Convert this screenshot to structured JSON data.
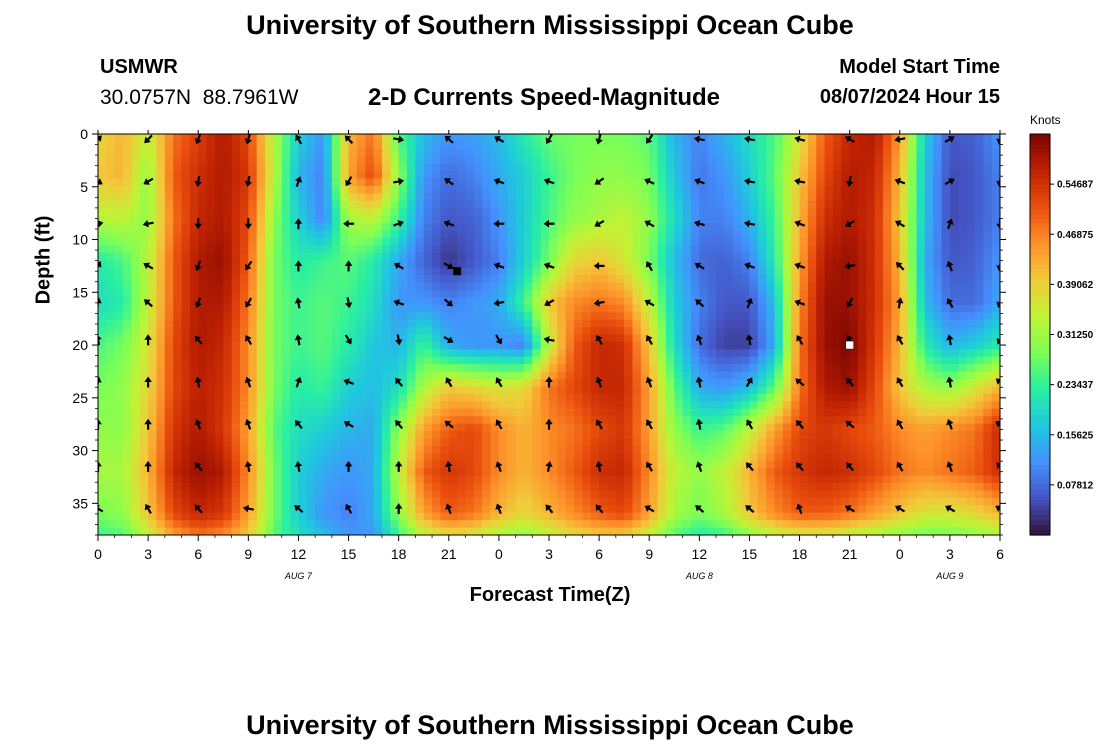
{
  "header": {
    "title": "University of Southern Mississippi Ocean Cube",
    "station": "USMWR",
    "coordinates": "30.0757N  88.7961W",
    "subtitle": "2-D Currents Speed-Magnitude",
    "model_start_label": "Model Start Time",
    "model_start_value": "08/07/2024 Hour 15"
  },
  "footer": {
    "title": "University of Southern Mississippi Ocean Cube"
  },
  "chart_data": {
    "type": "heatmap",
    "title": "2-D Currents Speed-Magnitude",
    "xlabel": "Forecast Time(Z)",
    "ylabel": "Depth (ft)",
    "x_ticks": [
      "0",
      "3",
      "6",
      "9",
      "12",
      "15",
      "18",
      "21",
      "0",
      "3",
      "6",
      "9",
      "12",
      "15",
      "18",
      "21",
      "0",
      "3",
      "6"
    ],
    "x_range_hours": [
      0,
      54
    ],
    "date_labels": [
      {
        "text": "AUG 7",
        "hour": 12
      },
      {
        "text": "AUG 8",
        "hour": 36
      },
      {
        "text": "AUG 9",
        "hour": 51
      }
    ],
    "y_ticks": [
      0,
      5,
      10,
      15,
      20,
      25,
      30,
      35
    ],
    "y_range": [
      0,
      38
    ],
    "colorbar": {
      "title": "Knots",
      "ticks": [
        "0.54687",
        "0.46875",
        "0.39062",
        "0.31250",
        "0.23437",
        "0.15625",
        "0.07812"
      ],
      "range": [
        0,
        0.625
      ],
      "colors": [
        "#30123b",
        "#4454c4",
        "#4490fe",
        "#1fc8de",
        "#29efa2",
        "#7dff56",
        "#c1f334",
        "#f1ca3a",
        "#fe922a",
        "#ea4e0d",
        "#be2102",
        "#7a0403"
      ]
    },
    "speed_grid": {
      "hours": [
        0,
        1.5,
        3,
        4.5,
        6,
        7.5,
        9,
        10.5,
        12,
        13.5,
        15,
        16.5,
        18,
        19.5,
        21,
        22.5,
        24,
        25.5,
        27,
        28.5,
        30,
        31.5,
        33,
        34.5,
        36,
        37.5,
        39,
        40.5,
        42,
        43.5,
        45,
        46.5,
        48,
        49.5,
        51,
        52.5,
        54
      ],
      "depths_ft": [
        0,
        4,
        8,
        12,
        16,
        20,
        24,
        28,
        32,
        36,
        38
      ],
      "values_knots": [
        [
          0.38,
          0.42,
          0.34,
          0.48,
          0.53,
          0.58,
          0.52,
          0.33,
          0.18,
          0.12,
          0.42,
          0.48,
          0.25,
          0.16,
          0.12,
          0.13,
          0.16,
          0.22,
          0.27,
          0.28,
          0.28,
          0.28,
          0.26,
          0.15,
          0.1,
          0.15,
          0.2,
          0.25,
          0.36,
          0.5,
          0.56,
          0.58,
          0.45,
          0.18,
          0.06,
          0.07,
          0.12
        ],
        [
          0.4,
          0.42,
          0.3,
          0.5,
          0.55,
          0.58,
          0.54,
          0.34,
          0.15,
          0.1,
          0.44,
          0.52,
          0.3,
          0.12,
          0.08,
          0.1,
          0.14,
          0.18,
          0.24,
          0.28,
          0.3,
          0.3,
          0.28,
          0.17,
          0.09,
          0.12,
          0.18,
          0.26,
          0.4,
          0.52,
          0.58,
          0.56,
          0.42,
          0.16,
          0.05,
          0.06,
          0.1
        ],
        [
          0.33,
          0.34,
          0.3,
          0.48,
          0.56,
          0.58,
          0.52,
          0.3,
          0.18,
          0.1,
          0.32,
          0.34,
          0.24,
          0.1,
          0.06,
          0.07,
          0.12,
          0.18,
          0.25,
          0.3,
          0.32,
          0.34,
          0.3,
          0.2,
          0.1,
          0.1,
          0.15,
          0.24,
          0.42,
          0.55,
          0.58,
          0.55,
          0.4,
          0.16,
          0.05,
          0.06,
          0.1
        ],
        [
          0.22,
          0.25,
          0.33,
          0.5,
          0.58,
          0.6,
          0.5,
          0.28,
          0.22,
          0.24,
          0.26,
          0.22,
          0.14,
          0.07,
          0.03,
          0.06,
          0.1,
          0.18,
          0.28,
          0.38,
          0.4,
          0.36,
          0.28,
          0.16,
          0.08,
          0.07,
          0.1,
          0.22,
          0.44,
          0.58,
          0.6,
          0.55,
          0.42,
          0.14,
          0.06,
          0.07,
          0.12
        ],
        [
          0.2,
          0.22,
          0.34,
          0.5,
          0.58,
          0.58,
          0.48,
          0.28,
          0.24,
          0.26,
          0.24,
          0.2,
          0.12,
          0.12,
          0.1,
          0.12,
          0.14,
          0.24,
          0.4,
          0.46,
          0.48,
          0.46,
          0.34,
          0.18,
          0.1,
          0.06,
          0.06,
          0.16,
          0.46,
          0.6,
          0.6,
          0.55,
          0.44,
          0.16,
          0.08,
          0.08,
          0.14
        ],
        [
          0.25,
          0.28,
          0.36,
          0.52,
          0.58,
          0.56,
          0.46,
          0.28,
          0.24,
          0.26,
          0.22,
          0.17,
          0.15,
          0.24,
          0.14,
          0.12,
          0.12,
          0.1,
          0.34,
          0.5,
          0.56,
          0.55,
          0.4,
          0.2,
          0.08,
          0.04,
          0.04,
          0.14,
          0.48,
          0.6,
          0.62,
          0.54,
          0.42,
          0.22,
          0.15,
          0.18,
          0.22
        ],
        [
          0.28,
          0.3,
          0.38,
          0.52,
          0.57,
          0.55,
          0.46,
          0.28,
          0.22,
          0.24,
          0.18,
          0.16,
          0.2,
          0.32,
          0.4,
          0.38,
          0.36,
          0.38,
          0.48,
          0.52,
          0.56,
          0.56,
          0.44,
          0.26,
          0.14,
          0.12,
          0.16,
          0.26,
          0.48,
          0.58,
          0.6,
          0.52,
          0.4,
          0.32,
          0.3,
          0.36,
          0.42
        ],
        [
          0.3,
          0.3,
          0.4,
          0.54,
          0.58,
          0.54,
          0.44,
          0.26,
          0.2,
          0.18,
          0.15,
          0.14,
          0.3,
          0.44,
          0.5,
          0.52,
          0.46,
          0.42,
          0.46,
          0.48,
          0.52,
          0.54,
          0.44,
          0.3,
          0.24,
          0.26,
          0.34,
          0.44,
          0.52,
          0.54,
          0.52,
          0.5,
          0.46,
          0.44,
          0.46,
          0.48,
          0.56
        ],
        [
          0.32,
          0.32,
          0.42,
          0.56,
          0.6,
          0.58,
          0.46,
          0.28,
          0.18,
          0.14,
          0.12,
          0.14,
          0.34,
          0.5,
          0.54,
          0.52,
          0.46,
          0.42,
          0.46,
          0.5,
          0.55,
          0.56,
          0.46,
          0.34,
          0.3,
          0.34,
          0.42,
          0.5,
          0.54,
          0.56,
          0.55,
          0.52,
          0.48,
          0.46,
          0.48,
          0.5,
          0.55
        ],
        [
          0.28,
          0.3,
          0.4,
          0.52,
          0.56,
          0.54,
          0.44,
          0.28,
          0.18,
          0.12,
          0.1,
          0.14,
          0.3,
          0.44,
          0.5,
          0.48,
          0.42,
          0.38,
          0.42,
          0.46,
          0.5,
          0.52,
          0.44,
          0.32,
          0.28,
          0.32,
          0.4,
          0.46,
          0.5,
          0.5,
          0.48,
          0.44,
          0.4,
          0.36,
          0.36,
          0.38,
          0.42
        ],
        [
          0.24,
          0.26,
          0.34,
          0.44,
          0.48,
          0.46,
          0.4,
          0.26,
          0.2,
          0.16,
          0.12,
          0.12,
          0.24,
          0.34,
          0.38,
          0.36,
          0.32,
          0.3,
          0.34,
          0.38,
          0.4,
          0.4,
          0.34,
          0.26,
          0.22,
          0.24,
          0.3,
          0.34,
          0.36,
          0.36,
          0.34,
          0.32,
          0.3,
          0.28,
          0.28,
          0.3,
          0.32
        ]
      ]
    },
    "vector_columns_hours": [
      0,
      3,
      6,
      9,
      12,
      15,
      18,
      21,
      24,
      27,
      30,
      33,
      36,
      39,
      42,
      45,
      48,
      51,
      54
    ],
    "vector_rows_ft": [
      0.5,
      4.5,
      8.5,
      12.5,
      16,
      19.5,
      23.5,
      27.5,
      31.5,
      35.5
    ],
    "vector_dir_deg": [
      [
        45,
        225,
        200,
        195,
        330,
        315,
        100,
        310,
        300,
        210,
        195,
        215,
        280,
        280,
        285,
        300,
        260,
        60,
        190
      ],
      [
        120,
        240,
        190,
        190,
        20,
        210,
        80,
        305,
        290,
        290,
        235,
        295,
        290,
        280,
        280,
        190,
        290,
        60,
        190
      ],
      [
        80,
        260,
        180,
        180,
        0,
        270,
        70,
        290,
        270,
        270,
        240,
        300,
        285,
        280,
        290,
        240,
        300,
        20,
        180
      ],
      [
        30,
        300,
        200,
        215,
        0,
        0,
        300,
        120,
        290,
        290,
        270,
        330,
        300,
        290,
        290,
        260,
        315,
        340,
        190
      ],
      [
        10,
        310,
        200,
        210,
        350,
        170,
        290,
        130,
        260,
        240,
        260,
        300,
        310,
        20,
        290,
        210,
        10,
        330,
        200
      ],
      [
        350,
        0,
        320,
        330,
        350,
        150,
        170,
        120,
        150,
        280,
        330,
        330,
        340,
        350,
        330,
        330,
        330,
        350,
        210
      ],
      [
        10,
        0,
        350,
        340,
        20,
        290,
        320,
        330,
        330,
        0,
        340,
        340,
        350,
        30,
        310,
        320,
        330,
        350,
        310
      ],
      [
        0,
        0,
        340,
        340,
        320,
        300,
        320,
        310,
        330,
        0,
        330,
        330,
        350,
        330,
        320,
        310,
        330,
        340,
        300
      ],
      [
        0,
        0,
        320,
        350,
        350,
        0,
        0,
        350,
        340,
        10,
        350,
        330,
        340,
        320,
        320,
        320,
        330,
        340,
        320
      ],
      [
        300,
        330,
        320,
        280,
        310,
        330,
        0,
        340,
        340,
        320,
        320,
        300,
        310,
        310,
        340,
        300,
        300,
        300,
        300
      ]
    ],
    "markers": [
      {
        "hour": 21.5,
        "depth_ft": 13,
        "color": "black"
      },
      {
        "hour": 45,
        "depth_ft": 20,
        "color": "white"
      }
    ]
  }
}
